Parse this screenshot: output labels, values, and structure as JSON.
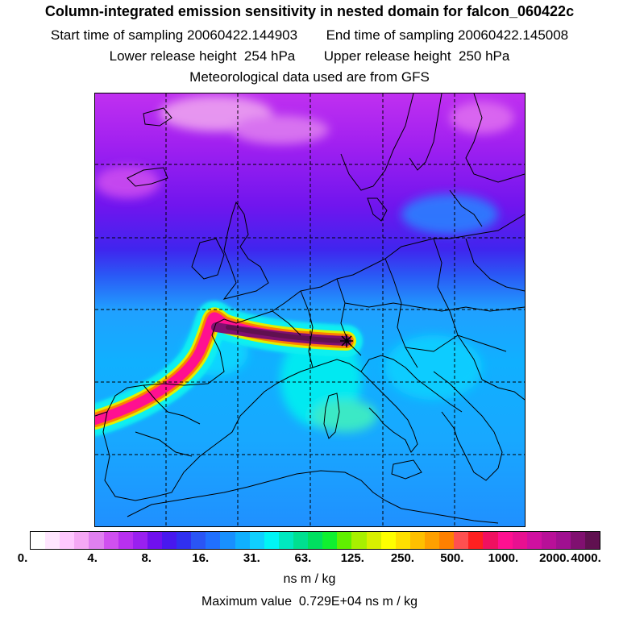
{
  "title": "Column-integrated emission sensitivity in nested domain for falcon_060422c",
  "start_label": "Start time of sampling",
  "start_time": "20060422.144903",
  "end_label": "End time of sampling",
  "end_time": "20060422.145008",
  "lower_label": "Lower release height",
  "lower_value": "254 hPa",
  "upper_label": "Upper release height",
  "upper_value": "250 hPa",
  "met_text": "Meteorological data used are from GFS",
  "colorbar": {
    "colors": [
      "#ffffff",
      "#ffe6ff",
      "#ffc8ff",
      "#f5a8f5",
      "#e080f0",
      "#d050f0",
      "#b830f0",
      "#9a20f0",
      "#7010ee",
      "#4818ee",
      "#3030f0",
      "#2a55f5",
      "#2070ff",
      "#1890ff",
      "#10b0ff",
      "#10d0ff",
      "#00f5f5",
      "#00e8c0",
      "#00e090",
      "#00e060",
      "#10f030",
      "#60f000",
      "#a8f000",
      "#d8f000",
      "#ffff00",
      "#ffe000",
      "#ffc000",
      "#ffa000",
      "#ff8000",
      "#ff5050",
      "#ff2020",
      "#f01060",
      "#ff1090",
      "#e81090",
      "#d010a0",
      "#b81098",
      "#a01090",
      "#801070",
      "#601050"
    ],
    "tick_labels": [
      "0.",
      "4.",
      "8.",
      "16.",
      "31.",
      "63.",
      "125.",
      "250.",
      "500.",
      "1000.",
      "2000.",
      "4000."
    ],
    "units": "ns m / kg"
  },
  "max_label": "Maximum value",
  "max_value": "0.729E+04 ns m / kg"
}
